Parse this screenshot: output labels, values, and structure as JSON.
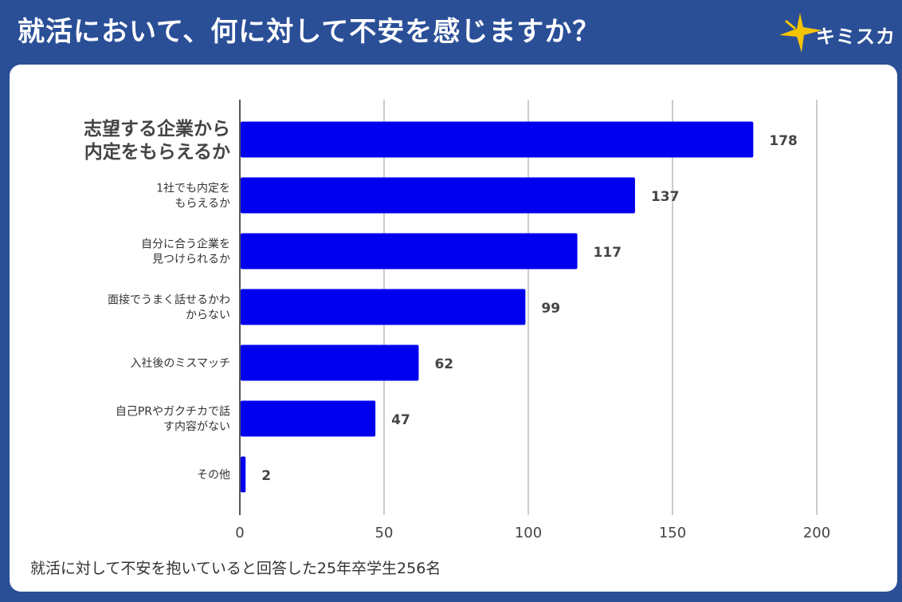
{
  "header": {
    "title": "就活において、何に対して不安を感じますか？",
    "logo_text": "キミスカ"
  },
  "colors": {
    "background": "#2a4f97",
    "bar": "#0000ee",
    "star": "#f5c400",
    "text": "#333333"
  },
  "footnote": "就活に対して不安を抱いていると回答した25年卒学生256名",
  "chart_data": {
    "type": "bar",
    "orientation": "horizontal",
    "title": "就活において、何に対して不安を感じますか？",
    "categories": [
      [
        "志望する企業から",
        "内定をもらえるか"
      ],
      [
        "1社でも内定を",
        "もらえるか"
      ],
      [
        "自分に合う企業を",
        "見つけられるか"
      ],
      [
        "面接でうまく話せるかわ",
        "からない"
      ],
      [
        "入社後のミスマッチ"
      ],
      [
        "自己PRやガクチカで話",
        "す内容がない"
      ],
      [
        "その他"
      ]
    ],
    "values": [
      178,
      137,
      117,
      99,
      62,
      47,
      2
    ],
    "xlim": [
      0,
      200
    ],
    "xticks": [
      0,
      50,
      100,
      150,
      200
    ],
    "grid": true,
    "highlight_index": 0
  }
}
